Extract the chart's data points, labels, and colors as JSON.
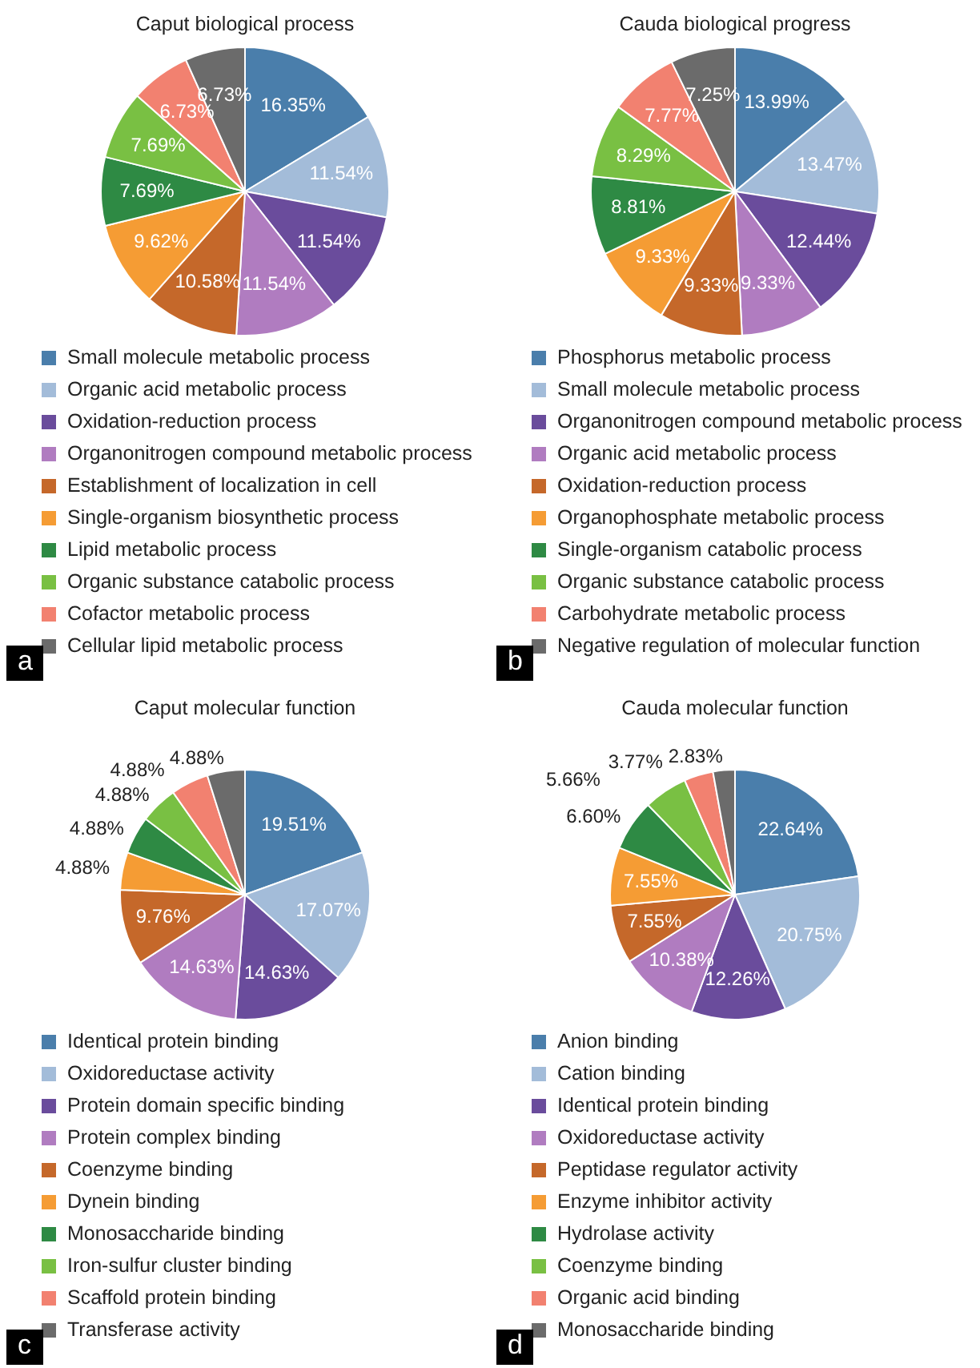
{
  "chart_data": [
    {
      "type": "pie",
      "title": "Caput biological process",
      "legend": "bottom",
      "annotations": [
        "a"
      ],
      "categories": [
        "Small molecule metabolic process",
        "Organic acid metabolic process",
        "Oxidation-reduction process",
        "Organonitrogen compound metabolic process",
        "Establishment of localization in cell",
        "Single-organism biosynthetic process",
        "Lipid metabolic process",
        "Organic substance catabolic process",
        "Cofactor metabolic process",
        "Cellular lipid metabolic process"
      ],
      "values": [
        16.35,
        11.54,
        11.54,
        11.54,
        10.58,
        9.62,
        7.69,
        7.69,
        6.73,
        6.73
      ],
      "value_labels": [
        "16.35%",
        "11.54%",
        "11.54%",
        "11.54%",
        "10.58%",
        "9.62%",
        "7.69%",
        "7.69%",
        "6.73%",
        "6.73%"
      ],
      "colors": [
        "#4a7eab",
        "#a3bcd9",
        "#6a4c9c",
        "#b07cc0",
        "#c5682a",
        "#f59c34",
        "#2e8a44",
        "#79c043",
        "#f28170",
        "#6b6b6b"
      ]
    },
    {
      "type": "pie",
      "title": "Cauda biological progress",
      "legend": "bottom",
      "annotations": [
        "b"
      ],
      "categories": [
        "Phosphorus metabolic process",
        "Small molecule metabolic process",
        "Organonitrogen compound metabolic process",
        "Organic acid metabolic process",
        "Oxidation-reduction process",
        "Organophosphate metabolic process",
        "Single-organism catabolic process",
        "Organic substance catabolic process",
        "Carbohydrate metabolic process",
        "Negative regulation of molecular function"
      ],
      "values": [
        13.99,
        13.47,
        12.44,
        9.33,
        9.33,
        9.33,
        8.81,
        8.29,
        7.77,
        7.25
      ],
      "value_labels": [
        "13.99%",
        "13.47%",
        "12.44%",
        "9.33%",
        "9.33%",
        "9.33%",
        "8.81%",
        "8.29%",
        "7.77%",
        "7.25%"
      ],
      "colors": [
        "#4a7eab",
        "#a3bcd9",
        "#6a4c9c",
        "#b07cc0",
        "#c5682a",
        "#f59c34",
        "#2e8a44",
        "#79c043",
        "#f28170",
        "#6b6b6b"
      ]
    },
    {
      "type": "pie",
      "title": "Caput molecular function",
      "legend": "bottom",
      "annotations": [
        "c"
      ],
      "categories": [
        "Identical protein binding",
        "Oxidoreductase activity",
        "Protein domain specific binding",
        "Protein complex binding",
        "Coenzyme binding",
        "Dynein binding",
        "Monosaccharide binding",
        "Iron-sulfur cluster binding",
        "Scaffold protein binding",
        "Transferase activity"
      ],
      "values": [
        19.51,
        17.07,
        14.63,
        14.63,
        9.76,
        4.88,
        4.88,
        4.88,
        4.88,
        4.88
      ],
      "value_labels": [
        "19.51%",
        "17.07%",
        "14.63%",
        "14.63%",
        "9.76%",
        "4.88%",
        "4.88%",
        "4.88%",
        "4.88%",
        "4.88%"
      ],
      "colors": [
        "#4a7eab",
        "#a3bcd9",
        "#6a4c9c",
        "#b07cc0",
        "#c5682a",
        "#f59c34",
        "#2e8a44",
        "#79c043",
        "#f28170",
        "#6b6b6b"
      ]
    },
    {
      "type": "pie",
      "title": "Cauda molecular function",
      "legend": "bottom",
      "annotations": [
        "d"
      ],
      "categories": [
        "Anion binding",
        "Cation binding",
        "Identical protein binding",
        "Oxidoreductase activity",
        "Peptidase regulator activity",
        "Enzyme inhibitor activity",
        "Hydrolase activity",
        "Coenzyme binding",
        "Organic acid binding",
        "Monosaccharide binding"
      ],
      "values": [
        22.64,
        20.75,
        12.26,
        10.38,
        7.55,
        7.55,
        6.6,
        5.66,
        3.77,
        2.83
      ],
      "value_labels": [
        "22.64%",
        "20.75%",
        "12.26%",
        "10.38%",
        "7.55%",
        "7.55%",
        "6.60%",
        "5.66%",
        "3.77%",
        "2.83%"
      ],
      "colors": [
        "#4a7eab",
        "#a3bcd9",
        "#6a4c9c",
        "#b07cc0",
        "#c5682a",
        "#f59c34",
        "#2e8a44",
        "#79c043",
        "#f28170",
        "#6b6b6b"
      ]
    }
  ]
}
